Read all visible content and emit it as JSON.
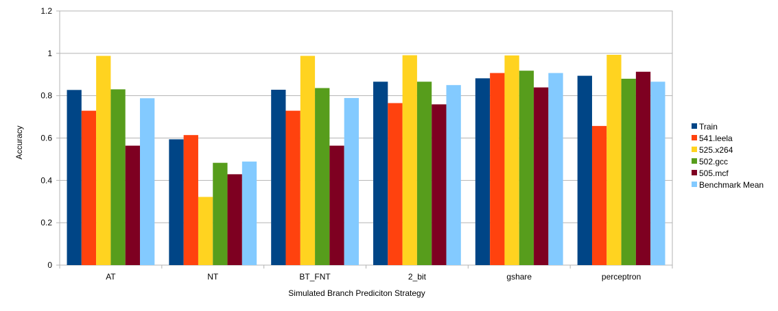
{
  "chart_data": {
    "type": "bar",
    "title": "",
    "xlabel": "Simulated Branch Prediciton Strategy",
    "ylabel": "Accuracy",
    "ylim": [
      0,
      1.2
    ],
    "yticks": [
      "0",
      "0.2",
      "0.4",
      "0.6",
      "0.8",
      "1",
      "1.2"
    ],
    "grid": true,
    "legend_position": "right",
    "categories": [
      "AT",
      "NT",
      "BT_FNT",
      "2_bit",
      "gshare",
      "perceptron"
    ],
    "series": [
      {
        "name": "Train",
        "color": "#004586",
        "values": [
          0.827,
          0.594,
          0.828,
          0.866,
          0.882,
          0.894
        ]
      },
      {
        "name": "541.leela",
        "color": "#ff420e",
        "values": [
          0.729,
          0.614,
          0.729,
          0.765,
          0.907,
          0.657
        ]
      },
      {
        "name": "525.x264",
        "color": "#ffd320",
        "values": [
          0.988,
          0.322,
          0.988,
          0.991,
          0.99,
          0.993
        ]
      },
      {
        "name": "502.gcc",
        "color": "#579d1c",
        "values": [
          0.83,
          0.483,
          0.836,
          0.866,
          0.918,
          0.88
        ]
      },
      {
        "name": "505.mcf",
        "color": "#7e0021",
        "values": [
          0.564,
          0.429,
          0.564,
          0.759,
          0.839,
          0.913
        ]
      },
      {
        "name": "Benchmark Mean",
        "color": "#83caff",
        "values": [
          0.788,
          0.489,
          0.789,
          0.85,
          0.907,
          0.866
        ]
      }
    ]
  }
}
